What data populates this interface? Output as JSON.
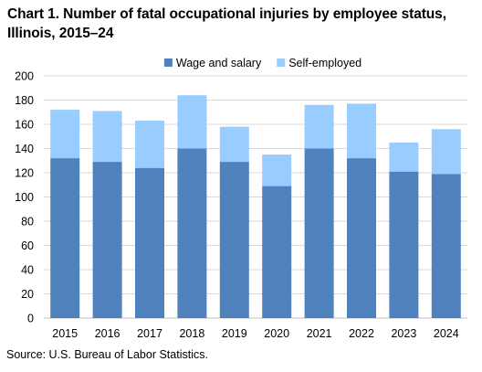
{
  "chart_data": {
    "type": "bar",
    "stacked": true,
    "title": "Chart 1. Number of fatal occupational injuries by employee status, Illinois, 2015–24",
    "categories": [
      "2015",
      "2016",
      "2017",
      "2018",
      "2019",
      "2020",
      "2021",
      "2022",
      "2023",
      "2024"
    ],
    "series": [
      {
        "name": "Wage and salary",
        "color": "#4f81bd",
        "values": [
          132,
          129,
          124,
          140,
          129,
          109,
          140,
          132,
          121,
          119
        ]
      },
      {
        "name": "Self-employed",
        "color": "#99ccff",
        "values": [
          40,
          42,
          39,
          44,
          29,
          26,
          36,
          45,
          24,
          37
        ]
      }
    ],
    "ylim": [
      0,
      200
    ],
    "yticks": [
      "0",
      "20",
      "40",
      "60",
      "80",
      "100",
      "120",
      "140",
      "160",
      "180",
      "200"
    ],
    "grid": true,
    "legend": "top-center",
    "xlabel": "",
    "ylabel": "",
    "source": "Source: U.S. Bureau of Labor Statistics."
  }
}
